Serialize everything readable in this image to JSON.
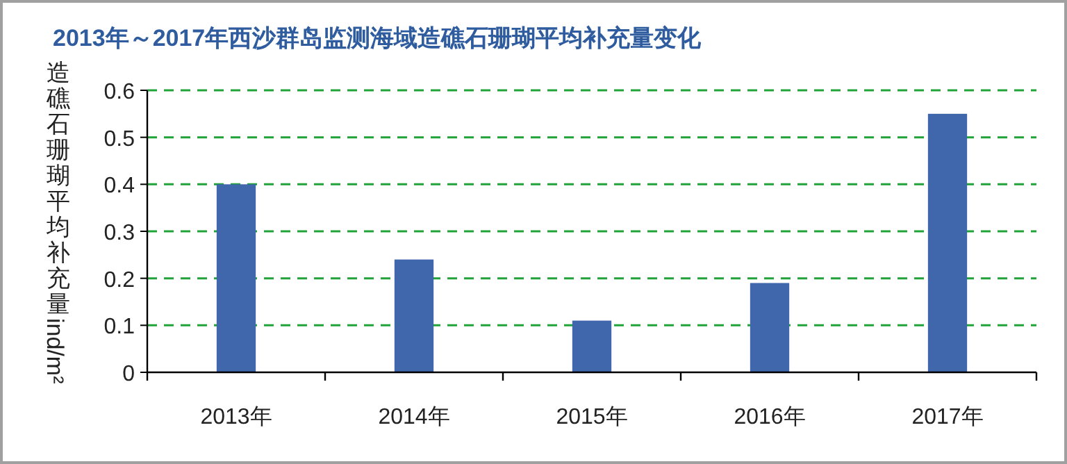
{
  "chart_data": {
    "type": "bar",
    "title": "2013年～2017年西沙群岛监测海域造礁石珊瑚平均补充量变化",
    "ylabel": "造礁石珊瑚平均补充量ind/m²",
    "categories": [
      "2013年",
      "2014年",
      "2015年",
      "2016年",
      "2017年"
    ],
    "values": [
      0.4,
      0.24,
      0.11,
      0.19,
      0.55
    ],
    "color": "#4066ab",
    "ylim": [
      0,
      0.6
    ],
    "yticks": [
      0,
      0.1,
      0.2,
      0.3,
      0.4,
      0.5,
      0.6
    ],
    "grid": "y"
  }
}
